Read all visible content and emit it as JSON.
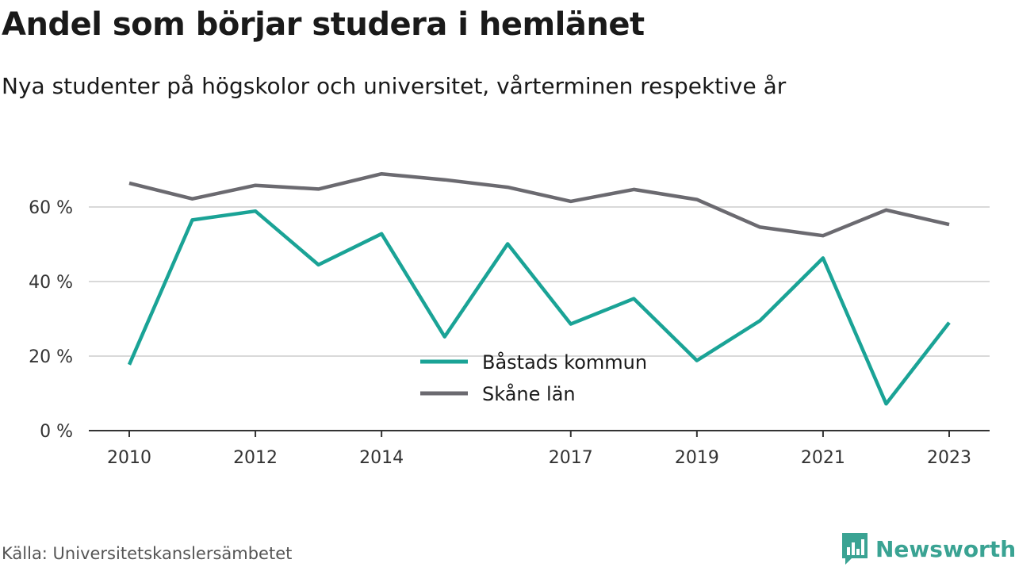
{
  "title": "Andel som börjar studera i hemlänet",
  "subtitle": "Nya studenter på högskolor och universitet, vårterminen respektive år",
  "source": "Källa: Universitetskanslersämbetet",
  "brand": "Newsworthy",
  "colors": {
    "bastad": "#1aa396",
    "skane": "#6b6a70",
    "grid": "#d9d9d9",
    "axis": "#333333",
    "brand": "#3aa393"
  },
  "chart_data": {
    "type": "line",
    "x": [
      2010,
      2011,
      2012,
      2013,
      2014,
      2015,
      2016,
      2017,
      2018,
      2019,
      2020,
      2021,
      2022,
      2023
    ],
    "x_ticks": [
      2010,
      2012,
      2014,
      2017,
      2019,
      2021,
      2023
    ],
    "x_tick_labels": [
      "2010",
      "2012",
      "2014",
      "2017",
      "2019",
      "2021",
      "2023"
    ],
    "y_ticks": [
      0,
      20,
      40,
      60
    ],
    "y_tick_labels": [
      "0 %",
      "20 %",
      "40 %",
      "60 %"
    ],
    "ylim": [
      0,
      70
    ],
    "xlim": [
      2009.7,
      2023.3
    ],
    "grid": true,
    "legend_position": "bottom-center",
    "series": [
      {
        "name": "Båstads kommun",
        "color": "#1aa396",
        "values": [
          17.7,
          56.5,
          58.9,
          44.5,
          52.8,
          25.2,
          50.1,
          28.6,
          35.4,
          18.8,
          29.5,
          46.3,
          7.2,
          29.0
        ]
      },
      {
        "name": "Skåne län",
        "color": "#6b6a70",
        "values": [
          66.4,
          62.2,
          65.8,
          64.8,
          68.9,
          67.3,
          65.3,
          61.5,
          64.7,
          62.0,
          54.6,
          52.3,
          59.2,
          55.3
        ]
      }
    ]
  }
}
